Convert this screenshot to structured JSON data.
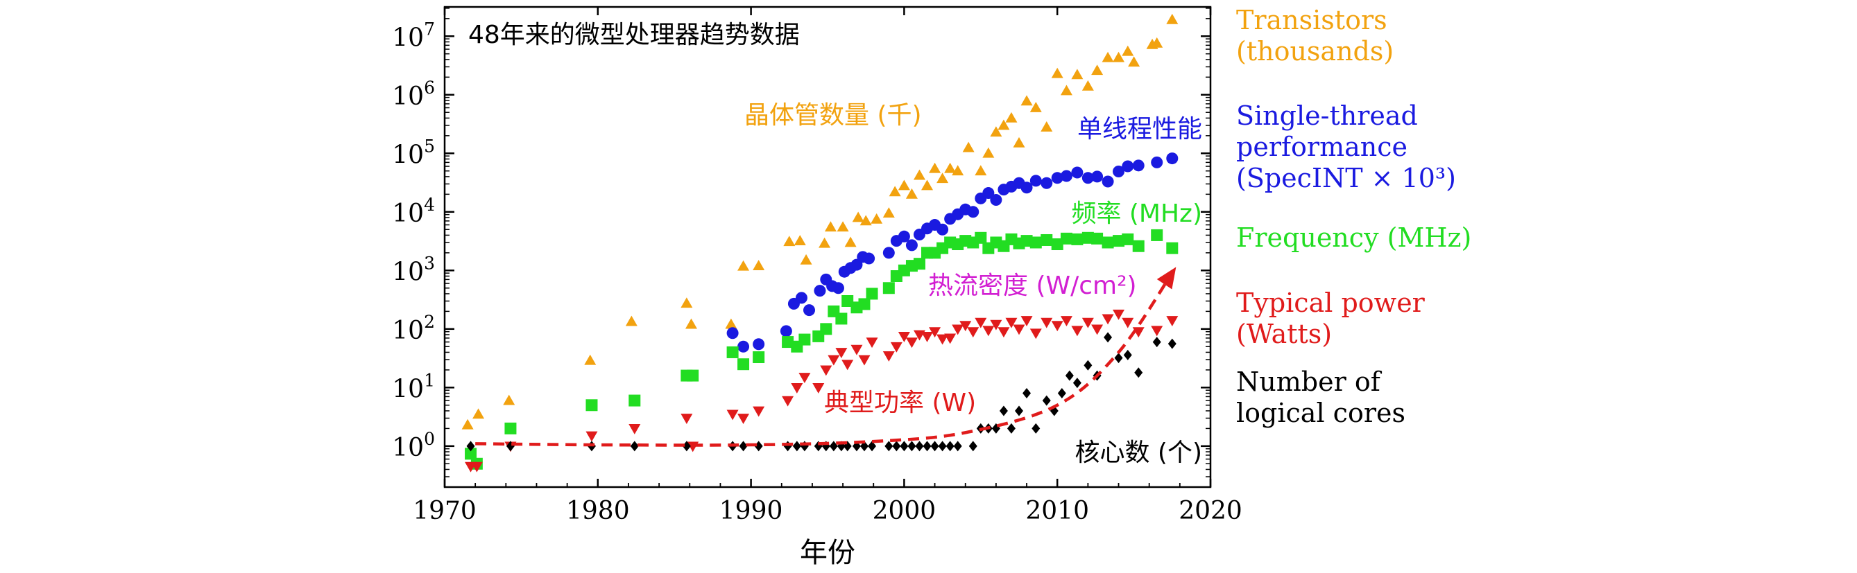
{
  "chart_data": {
    "type": "scatter",
    "title": "48年来的微型处理器趋势数据",
    "xlabel": "年份",
    "ylabel": "",
    "xlim": [
      1970,
      2020
    ],
    "ylim_log10": [
      -0.7,
      7.5
    ],
    "x_ticks": [
      "1970",
      "1980",
      "1990",
      "2000",
      "2010",
      "2020"
    ],
    "x_tick_values": [
      1970,
      1980,
      1990,
      2000,
      2010,
      2020
    ],
    "y_ticks": [
      {
        "base": "10",
        "exp": "0",
        "value": 0
      },
      {
        "base": "10",
        "exp": "1",
        "value": 1
      },
      {
        "base": "10",
        "exp": "2",
        "value": 2
      },
      {
        "base": "10",
        "exp": "3",
        "value": 3
      },
      {
        "base": "10",
        "exp": "4",
        "value": 4
      },
      {
        "base": "10",
        "exp": "5",
        "value": 5
      },
      {
        "base": "10",
        "exp": "6",
        "value": 6
      },
      {
        "base": "10",
        "exp": "7",
        "value": 7
      }
    ],
    "colors": {
      "transistors": "#f2a20f",
      "single_thread": "#1a1ae0",
      "frequency": "#22dd22",
      "power": "#e01b1b",
      "cores": "#000000",
      "heat_label": "#d21fd2"
    },
    "series": [
      {
        "key": "transistors",
        "name": "Transistors (thousands)",
        "marker": "triangle-up",
        "x": [
          1971.5,
          1972.2,
          1974.2,
          1979.5,
          1982.2,
          1985.8,
          1986.1,
          1988.7,
          1989.5,
          1990.5,
          1992.5,
          1993.2,
          1993.6,
          1994.8,
          1995.2,
          1996.0,
          1996.5,
          1997.0,
          1997.5,
          1998.2,
          1999.0,
          1999.4,
          2000.0,
          2000.5,
          2001.0,
          2001.5,
          2002.0,
          2002.5,
          2003.0,
          2003.5,
          2004.2,
          2005.0,
          2005.5,
          2006.0,
          2006.5,
          2007.0,
          2007.5,
          2008.0,
          2008.6,
          2009.3,
          2010.0,
          2010.6,
          2011.3,
          2012.0,
          2012.6,
          2013.3,
          2014.0,
          2014.6,
          2015.0,
          2016.2,
          2016.5,
          2017.5
        ],
        "y": [
          2.3,
          3.5,
          6.0,
          29,
          134,
          275,
          120,
          120,
          1180,
          1200,
          3100,
          3200,
          1500,
          2900,
          5500,
          5500,
          3000,
          8000,
          7000,
          7500,
          9500,
          22000,
          28000,
          20000,
          42000,
          28000,
          55000,
          37000,
          55000,
          50000,
          125000,
          50000,
          100000,
          230000,
          300000,
          400000,
          150000,
          780000,
          600000,
          280000,
          2300000,
          1170000,
          2200000,
          1400000,
          2600000,
          4300000,
          4300000,
          5500000,
          3600000,
          7200000,
          7600000,
          19200000
        ]
      },
      {
        "key": "single_thread",
        "name": "Single-thread performance (SpecINT x 10^3)",
        "marker": "circle",
        "x": [
          1988.8,
          1989.5,
          1990.5,
          1992.3,
          1992.8,
          1993.3,
          1993.8,
          1994.5,
          1994.9,
          1995.3,
          1995.7,
          1996.1,
          1996.5,
          1996.9,
          1997.3,
          1997.7,
          1999.0,
          1999.5,
          2000.0,
          2000.5,
          2001.0,
          2001.5,
          2002.0,
          2002.5,
          2003.0,
          2003.5,
          2004.0,
          2004.5,
          2005.0,
          2005.5,
          2006.0,
          2006.5,
          2007.0,
          2007.5,
          2008.0,
          2008.6,
          2009.3,
          2010.0,
          2010.6,
          2011.3,
          2012.0,
          2012.6,
          2013.3,
          2014.0,
          2014.6,
          2015.3,
          2016.5,
          2017.5
        ],
        "y": [
          85,
          50,
          55,
          92,
          270,
          340,
          210,
          450,
          700,
          540,
          500,
          950,
          1100,
          1250,
          1700,
          1600,
          2000,
          3200,
          3800,
          2700,
          4100,
          5200,
          6000,
          5000,
          7600,
          9100,
          11000,
          10000,
          17000,
          21000,
          16000,
          24000,
          27000,
          31000,
          26000,
          34000,
          31000,
          38000,
          41000,
          47000,
          38000,
          40000,
          33000,
          49000,
          60000,
          62000,
          70000,
          82000
        ]
      },
      {
        "key": "frequency",
        "name": "Frequency (MHz)",
        "marker": "square",
        "x": [
          1971.7,
          1972.1,
          1974.3,
          1979.6,
          1982.4,
          1985.8,
          1986.2,
          1988.8,
          1989.5,
          1990.5,
          1992.4,
          1993.0,
          1993.5,
          1994.4,
          1994.9,
          1995.4,
          1995.9,
          1996.3,
          1996.9,
          1997.4,
          1997.9,
          1999.0,
          1999.5,
          2000.0,
          2000.5,
          2001.0,
          2001.5,
          2002.0,
          2002.5,
          2003.0,
          2003.5,
          2004.0,
          2004.5,
          2005.0,
          2005.5,
          2006.0,
          2006.5,
          2007.0,
          2007.5,
          2008.0,
          2008.6,
          2009.3,
          2010.0,
          2010.6,
          2011.3,
          2012.0,
          2012.6,
          2013.3,
          2014.0,
          2014.6,
          2015.3,
          2016.5,
          2017.5
        ],
        "y": [
          0.74,
          0.5,
          2.0,
          5.0,
          6.0,
          16,
          16,
          40,
          25,
          33,
          60,
          50,
          66,
          75,
          100,
          200,
          150,
          300,
          233,
          266,
          400,
          500,
          800,
          1000,
          1200,
          1300,
          2000,
          2000,
          2400,
          3000,
          2800,
          3200,
          3000,
          3600,
          2400,
          3000,
          2600,
          3400,
          2900,
          3200,
          3000,
          3300,
          2800,
          3500,
          3400,
          3600,
          3500,
          3000,
          3200,
          3400,
          2600,
          4000,
          2400
        ]
      },
      {
        "key": "power",
        "name": "Typical power (Watts)",
        "marker": "triangle-down",
        "x": [
          1971.7,
          1972.1,
          1974.3,
          1979.6,
          1982.4,
          1985.8,
          1986.2,
          1988.8,
          1989.5,
          1990.5,
          1992.4,
          1993.0,
          1993.5,
          1994.4,
          1994.9,
          1995.4,
          1995.9,
          1996.3,
          1996.9,
          1997.4,
          1997.9,
          1999.0,
          1999.5,
          2000.0,
          2000.5,
          2001.0,
          2001.5,
          2002.0,
          2002.5,
          2003.0,
          2003.5,
          2004.0,
          2004.5,
          2005.0,
          2005.5,
          2006.0,
          2006.5,
          2007.0,
          2007.5,
          2008.0,
          2008.6,
          2009.3,
          2010.0,
          2010.6,
          2011.3,
          2012.0,
          2012.6,
          2013.3,
          2014.0,
          2014.6,
          2015.3,
          2016.5,
          2017.5
        ],
        "y": [
          0.45,
          0.45,
          1.0,
          1.5,
          2.0,
          3.0,
          1.0,
          3.5,
          3.0,
          4.0,
          6.0,
          10,
          15,
          10,
          20,
          30,
          40,
          25,
          45,
          30,
          60,
          35,
          50,
          75,
          60,
          80,
          75,
          90,
          68,
          70,
          100,
          115,
          90,
          130,
          95,
          120,
          90,
          130,
          100,
          140,
          85,
          130,
          115,
          140,
          95,
          130,
          100,
          150,
          180,
          130,
          90,
          95,
          140
        ]
      },
      {
        "key": "cores",
        "name": "Number of logical cores",
        "marker": "diamond",
        "x": [
          1971.7,
          1974.3,
          1979.6,
          1982.4,
          1985.8,
          1988.8,
          1989.5,
          1990.5,
          1992.4,
          1993.0,
          1993.5,
          1994.4,
          1994.9,
          1995.4,
          1995.9,
          1996.3,
          1996.9,
          1997.4,
          1997.9,
          1999.0,
          1999.5,
          2000.0,
          2000.5,
          2001.0,
          2001.5,
          2002.0,
          2002.5,
          2003.0,
          2003.5,
          2004.5,
          2005.0,
          2005.5,
          2006.0,
          2006.5,
          2007.0,
          2007.5,
          2008.0,
          2008.6,
          2009.3,
          2009.8,
          2010.3,
          2010.8,
          2011.3,
          2012.0,
          2012.6,
          2013.3,
          2014.0,
          2014.6,
          2015.3,
          2016.5,
          2017.5
        ],
        "y": [
          1,
          1,
          1,
          1,
          1,
          1,
          1,
          1,
          1,
          1,
          1,
          1,
          1,
          1,
          1,
          1,
          1,
          1,
          1,
          1,
          1,
          1,
          1,
          1,
          1,
          1,
          1,
          1,
          1,
          1,
          2,
          2,
          2,
          4,
          2,
          4,
          8,
          2,
          6,
          4,
          8,
          16,
          12,
          24,
          16,
          72,
          32,
          36,
          18,
          60,
          56
        ]
      }
    ],
    "annotations": {
      "transistors": "晶体管数量 (千)",
      "single_thread": "单线程性能",
      "frequency": "频率 (MHz)",
      "heat": "热流密度 (W/cm²)",
      "power": "典型功率 (W)",
      "cores": "核心数 (个)"
    },
    "legend": {
      "placement": "right",
      "entries": [
        {
          "key": "transistors",
          "lines": [
            "Transistors",
            "(thousands)"
          ]
        },
        {
          "key": "single_thread",
          "lines": [
            "Single-thread",
            "performance",
            "(SpecINT × 10³)"
          ]
        },
        {
          "key": "frequency",
          "lines": [
            "Frequency (MHz)"
          ]
        },
        {
          "key": "power",
          "lines": [
            "Typical power",
            "(Watts)"
          ]
        },
        {
          "key": "cores",
          "lines": [
            "Number of",
            "logical cores"
          ]
        }
      ]
    },
    "trend_arrow": {
      "color": "#e01b1b",
      "style": "dashed",
      "x": [
        1972,
        1980,
        1990,
        1998,
        2004,
        2010,
        2014,
        2017.6
      ],
      "y": [
        1.1,
        1.05,
        1.05,
        1.2,
        1.7,
        5,
        40,
        1000
      ]
    }
  }
}
